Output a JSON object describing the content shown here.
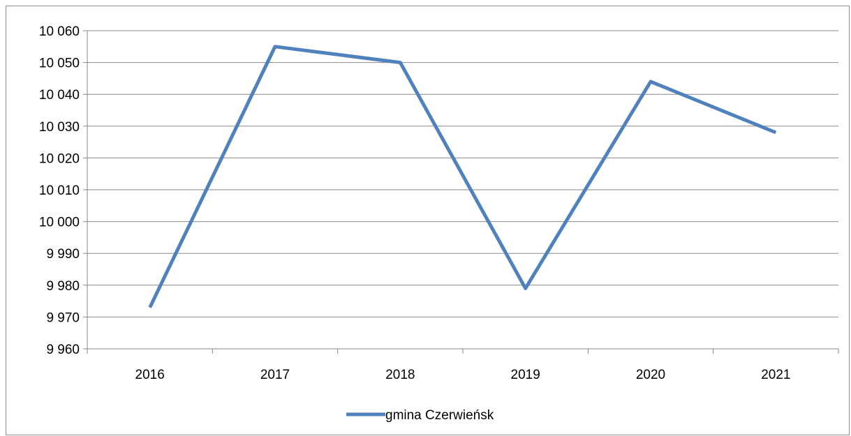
{
  "chart_data": {
    "type": "line",
    "title": "",
    "xlabel": "",
    "ylabel": "",
    "categories": [
      "2016",
      "2017",
      "2018",
      "2019",
      "2020",
      "2021"
    ],
    "series": [
      {
        "name": "gmina Czerwieńsk",
        "color": "#4f81bd",
        "values": [
          9973,
          10055,
          10050,
          9979,
          10044,
          10028
        ]
      }
    ],
    "ylim": [
      9960,
      10060
    ],
    "ytick_step": 10,
    "ytick_labels": [
      "9 960",
      "9 970",
      "9 980",
      "9 990",
      "10 000",
      "10 010",
      "10 020",
      "10 030",
      "10 040",
      "10 050",
      "10 060"
    ],
    "grid": true,
    "legend_position": "bottom"
  }
}
